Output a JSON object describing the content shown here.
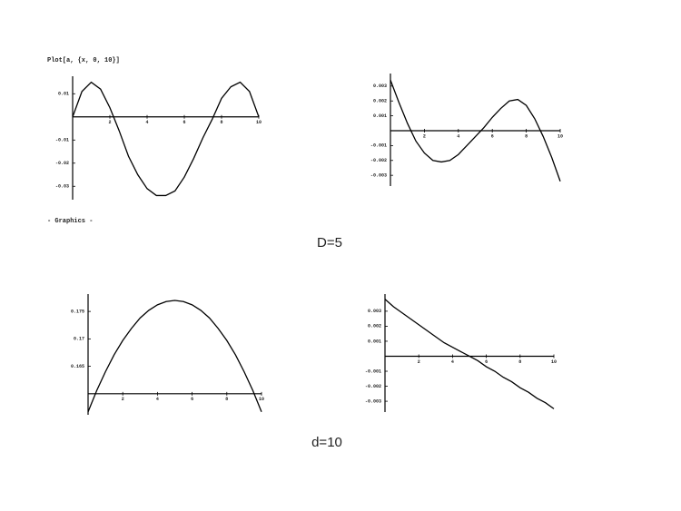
{
  "header": {
    "command": "Plot[a, {x, 0, 10}]",
    "output": "- Graphics -"
  },
  "captions": [
    "D=5",
    "d=10"
  ],
  "chart_data": [
    {
      "type": "line",
      "color": "#000000",
      "origin": [
        0,
        0
      ],
      "x": [
        0,
        0.5,
        1,
        1.5,
        2,
        2.5,
        3,
        3.5,
        4,
        4.5,
        5,
        5.5,
        6,
        6.5,
        7,
        7.5,
        8,
        8.5,
        9,
        9.5,
        10
      ],
      "values": [
        0,
        0.011,
        0.015,
        0.012,
        0.004,
        -0.006,
        -0.017,
        -0.025,
        -0.031,
        -0.034,
        -0.034,
        -0.032,
        -0.026,
        -0.018,
        -0.009,
        -0.001,
        0.008,
        0.013,
        0.015,
        0.011,
        0
      ],
      "xlim": [
        0,
        10
      ],
      "xticks": [
        2,
        4,
        6,
        8,
        10
      ],
      "ylim": [
        -0.035,
        0.016
      ],
      "yticks": [
        0.01,
        -0.01,
        -0.02,
        -0.03
      ]
    },
    {
      "type": "line",
      "color": "#000000",
      "origin": [
        0,
        0
      ],
      "x": [
        0,
        0.5,
        1,
        1.5,
        2,
        2.5,
        3,
        3.5,
        4,
        4.5,
        5,
        5.5,
        6,
        6.5,
        7,
        7.5,
        8,
        8.5,
        9,
        9.5,
        10
      ],
      "values": [
        0.0034,
        0.0019,
        0.0005,
        -0.0007,
        -0.0015,
        -0.002,
        -0.0021,
        -0.002,
        -0.0016,
        -0.001,
        -0.0004,
        0.0002,
        0.0009,
        0.0015,
        0.002,
        0.0021,
        0.0017,
        0.0008,
        -0.0004,
        -0.0018,
        -0.0034
      ],
      "xlim": [
        0,
        10
      ],
      "xticks": [
        2,
        4,
        6,
        8,
        10
      ],
      "ylim": [
        -0.0036,
        0.0036
      ],
      "yticks": [
        0.003,
        0.002,
        0.001,
        -0.001,
        -0.002,
        -0.003
      ]
    },
    {
      "type": "line",
      "color": "#000000",
      "origin": [
        0,
        0.16
      ],
      "x": [
        0,
        0.5,
        1,
        1.5,
        2,
        2.5,
        3,
        3.5,
        4,
        4.5,
        5,
        5.5,
        6,
        6.5,
        7,
        7.5,
        8,
        8.5,
        9,
        9.5,
        10
      ],
      "values": [
        0.1567,
        0.1606,
        0.164,
        0.1671,
        0.1697,
        0.1719,
        0.1738,
        0.1752,
        0.1762,
        0.1768,
        0.177,
        0.1768,
        0.1762,
        0.1752,
        0.1738,
        0.1719,
        0.1697,
        0.1671,
        0.164,
        0.1606,
        0.1567
      ],
      "xlim": [
        0,
        10
      ],
      "xticks": [
        2,
        4,
        6,
        8,
        10
      ],
      "ylim": [
        0.1565,
        0.1775
      ],
      "yticks": [
        0.175,
        0.17,
        0.165
      ]
    },
    {
      "type": "line",
      "color": "#000000",
      "origin": [
        0,
        0
      ],
      "x": [
        0,
        0.5,
        1,
        1.5,
        2,
        2.5,
        3,
        3.5,
        4,
        4.5,
        5,
        5.5,
        6,
        6.5,
        7,
        7.5,
        8,
        8.5,
        9,
        9.5,
        10
      ],
      "values": [
        0.0038,
        0.0033,
        0.0029,
        0.0025,
        0.0021,
        0.0017,
        0.0013,
        0.0009,
        0.0006,
        0.0003,
        0,
        -0.0003,
        -0.0007,
        -0.001,
        -0.0014,
        -0.0017,
        -0.0021,
        -0.0024,
        -0.0028,
        -0.0031,
        -0.0035
      ],
      "xlim": [
        0,
        10
      ],
      "xticks": [
        2,
        4,
        6,
        8,
        10
      ],
      "ylim": [
        -0.0036,
        0.0039
      ],
      "yticks": [
        0.003,
        0.002,
        0.001,
        -0.001,
        -0.002,
        -0.003
      ]
    }
  ]
}
